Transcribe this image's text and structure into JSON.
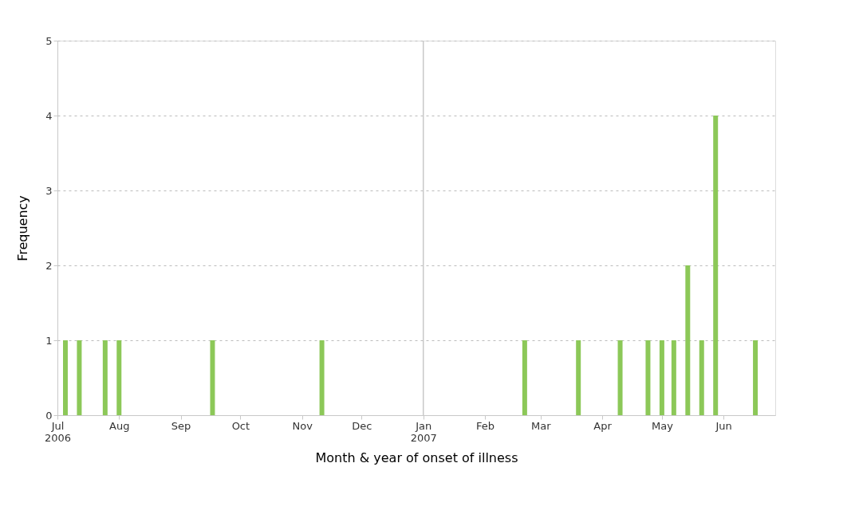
{
  "chart_data": {
    "type": "bar",
    "xlabel": "Month & year of onset of illness",
    "ylabel": "Frequency",
    "x": [
      "2006-07-05",
      "2006-07-12",
      "2006-07-25",
      "2006-08-01",
      "2006-09-17",
      "2006-11-11",
      "2007-02-21",
      "2007-03-20",
      "2007-04-10",
      "2007-04-24",
      "2007-05-01",
      "2007-05-07",
      "2007-05-14",
      "2007-05-21",
      "2007-05-28",
      "2007-06-17"
    ],
    "values": [
      1,
      1,
      1,
      1,
      1,
      1,
      1,
      1,
      1,
      1,
      1,
      1,
      2,
      1,
      4,
      1
    ],
    "color": "#8cc858",
    "xlim": [
      "2006-07-01",
      "2007-06-27"
    ],
    "xticks": [
      {
        "value": "2006-07-01",
        "label": "Jul\n2006"
      },
      {
        "value": "2006-08-01",
        "label": "Aug"
      },
      {
        "value": "2006-09-01",
        "label": "Sep"
      },
      {
        "value": "2006-10-01",
        "label": "Oct"
      },
      {
        "value": "2006-11-01",
        "label": "Nov"
      },
      {
        "value": "2006-12-01",
        "label": "Dec"
      },
      {
        "value": "2007-01-01",
        "label": "Jan\n2007"
      },
      {
        "value": "2007-02-01",
        "label": "Feb"
      },
      {
        "value": "2007-03-01",
        "label": "Mar"
      },
      {
        "value": "2007-04-01",
        "label": "Apr"
      },
      {
        "value": "2007-05-01",
        "label": "May"
      },
      {
        "value": "2007-06-01",
        "label": "Jun"
      }
    ],
    "ylim": [
      0,
      5
    ],
    "yticks": [
      0,
      1,
      2,
      3,
      4,
      5
    ],
    "grid": "y",
    "ref_lines": [
      {
        "axis": "x",
        "value": "2007-01-01",
        "color": "#c8c8c8"
      }
    ]
  }
}
